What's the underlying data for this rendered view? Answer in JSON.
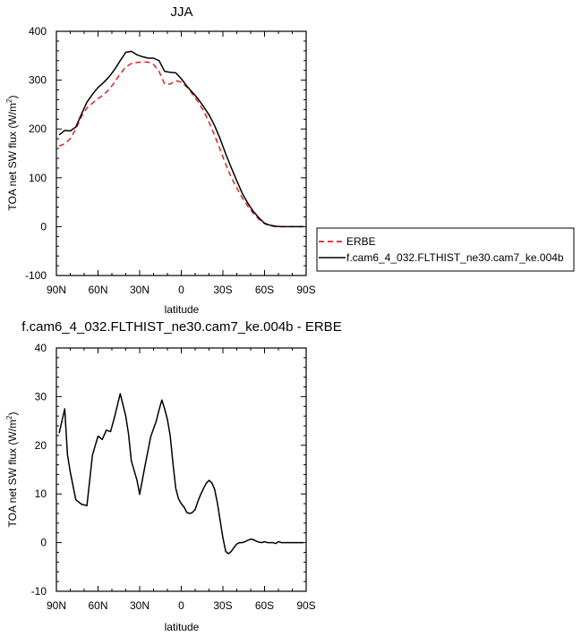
{
  "chart_data": [
    {
      "type": "line",
      "title": "JJA",
      "xlabel": "latitude",
      "ylabel": "TOA net SW flux (W/m",
      "ylabel_sup": "2",
      "ylabel_close": ")",
      "xlim": [
        90,
        -90
      ],
      "ylim": [
        -100,
        400
      ],
      "xticks": [
        {
          "value": 90,
          "label": "90N"
        },
        {
          "value": 60,
          "label": "60N"
        },
        {
          "value": 30,
          "label": "30N"
        },
        {
          "value": 0,
          "label": "0"
        },
        {
          "value": -30,
          "label": "30S"
        },
        {
          "value": -60,
          "label": "60S"
        },
        {
          "value": -90,
          "label": "90S"
        }
      ],
      "yticks": [
        400,
        300,
        200,
        100,
        0,
        -100
      ],
      "legend": {
        "placement": "right",
        "entries": [
          {
            "label": "ERBE",
            "color": "#e0201b",
            "dash": true
          },
          {
            "label": "f.cam6_4_032.FLTHIST_ne30.cam7_ke.004b",
            "color": "#000000",
            "dash": false
          }
        ]
      },
      "series": [
        {
          "name": "ERBE",
          "color": "#e0201b",
          "dash": true,
          "x": [
            88,
            84,
            80,
            76,
            72,
            68,
            64,
            60,
            56,
            52,
            48,
            44,
            40,
            36,
            32,
            28,
            24,
            20,
            16,
            12,
            8,
            4,
            0,
            -4,
            -8,
            -12,
            -16,
            -20,
            -24,
            -28,
            -32,
            -36,
            -40,
            -44,
            -48,
            -52,
            -56,
            -60,
            -64,
            -68,
            -72,
            -76,
            -80,
            -84,
            -88
          ],
          "y": [
            165,
            170,
            180,
            200,
            225,
            243,
            253,
            262,
            270,
            281,
            296,
            313,
            327,
            334,
            336,
            337,
            337,
            332,
            318,
            292,
            292,
            299,
            296,
            286,
            272,
            256,
            238,
            214,
            187,
            158,
            128,
            101,
            79,
            59,
            42,
            27,
            15,
            6,
            2,
            0,
            0,
            0,
            0,
            0,
            0
          ]
        },
        {
          "name": "f.cam6_4_032.FLTHIST_ne30.cam7_ke.004b",
          "color": "#000000",
          "dash": false,
          "x": [
            88,
            84,
            80,
            76,
            72,
            68,
            64,
            60,
            56,
            52,
            48,
            44,
            40,
            36,
            32,
            28,
            24,
            20,
            16,
            12,
            8,
            4,
            0,
            -4,
            -8,
            -12,
            -16,
            -20,
            -24,
            -28,
            -32,
            -36,
            -40,
            -44,
            -48,
            -52,
            -56,
            -60,
            -64,
            -68,
            -72,
            -76,
            -80,
            -84,
            -88
          ],
          "y": [
            188,
            197,
            196,
            204,
            230,
            255,
            271,
            285,
            295,
            307,
            322,
            340,
            357,
            359,
            352,
            348,
            345,
            345,
            340,
            318,
            316,
            315,
            303,
            288,
            275,
            262,
            246,
            229,
            207,
            180,
            149,
            121,
            94,
            68,
            48,
            31,
            18,
            7,
            3,
            1,
            0,
            0,
            0,
            0,
            0
          ]
        }
      ]
    },
    {
      "type": "line",
      "title": "f.cam6_4_032.FLTHIST_ne30.cam7_ke.004b - ERBE",
      "xlabel": "latitude",
      "ylabel": "TOA net SW flux (W/m",
      "ylabel_sup": "2",
      "ylabel_close": ")",
      "xlim": [
        90,
        -90
      ],
      "ylim": [
        -10,
        40
      ],
      "xticks": [
        {
          "value": 90,
          "label": "90N"
        },
        {
          "value": 60,
          "label": "60N"
        },
        {
          "value": 30,
          "label": "30N"
        },
        {
          "value": 0,
          "label": "0"
        },
        {
          "value": -30,
          "label": "30S"
        },
        {
          "value": -60,
          "label": "60S"
        },
        {
          "value": -90,
          "label": "90S"
        }
      ],
      "yticks": [
        40,
        30,
        20,
        10,
        0,
        -10
      ],
      "series": [
        {
          "name": "",
          "color": "#000000",
          "dash": false,
          "x": [
            88,
            84,
            82,
            80,
            76,
            72,
            68,
            64,
            60,
            57,
            54,
            51,
            48,
            44,
            40,
            38,
            36,
            32,
            30,
            26,
            22,
            18,
            16,
            14,
            12,
            10,
            8,
            6,
            4,
            2,
            0,
            -2,
            -4,
            -6,
            -8,
            -10,
            -12,
            -14,
            -16,
            -18,
            -20,
            -22,
            -24,
            -26,
            -28,
            -30,
            -32,
            -34,
            -36,
            -38,
            -40,
            -42,
            -44,
            -46,
            -48,
            -50,
            -52,
            -54,
            -56,
            -58,
            -60,
            -62,
            -64,
            -66,
            -68,
            -70,
            -72,
            -74,
            -76,
            -78,
            -80,
            -82,
            -84,
            -86,
            -88
          ],
          "y": [
            22.5,
            27.5,
            18.0,
            14.5,
            8.8,
            7.9,
            7.6,
            18.0,
            21.9,
            21.2,
            23.1,
            22.8,
            25.9,
            30.6,
            26.0,
            22.3,
            16.8,
            12.9,
            9.9,
            16.0,
            21.8,
            25.0,
            27.3,
            29.3,
            27.5,
            25.3,
            22.0,
            16.3,
            11.2,
            9.0,
            8.0,
            7.3,
            6.2,
            6.0,
            6.2,
            6.8,
            8.5,
            9.9,
            11.1,
            12.2,
            12.8,
            12.3,
            11.0,
            8.2,
            4.6,
            1.0,
            -1.8,
            -2.3,
            -1.8,
            -1.0,
            -0.3,
            0.0,
            0.0,
            0.2,
            0.5,
            0.7,
            0.6,
            0.3,
            0.1,
            0.0,
            0.2,
            0.0,
            0.0,
            0.0,
            -0.2,
            0.2,
            0.0,
            0.0,
            0.0,
            0.0,
            0.0,
            0.0,
            0.0,
            0.0,
            0.0
          ]
        }
      ]
    }
  ]
}
